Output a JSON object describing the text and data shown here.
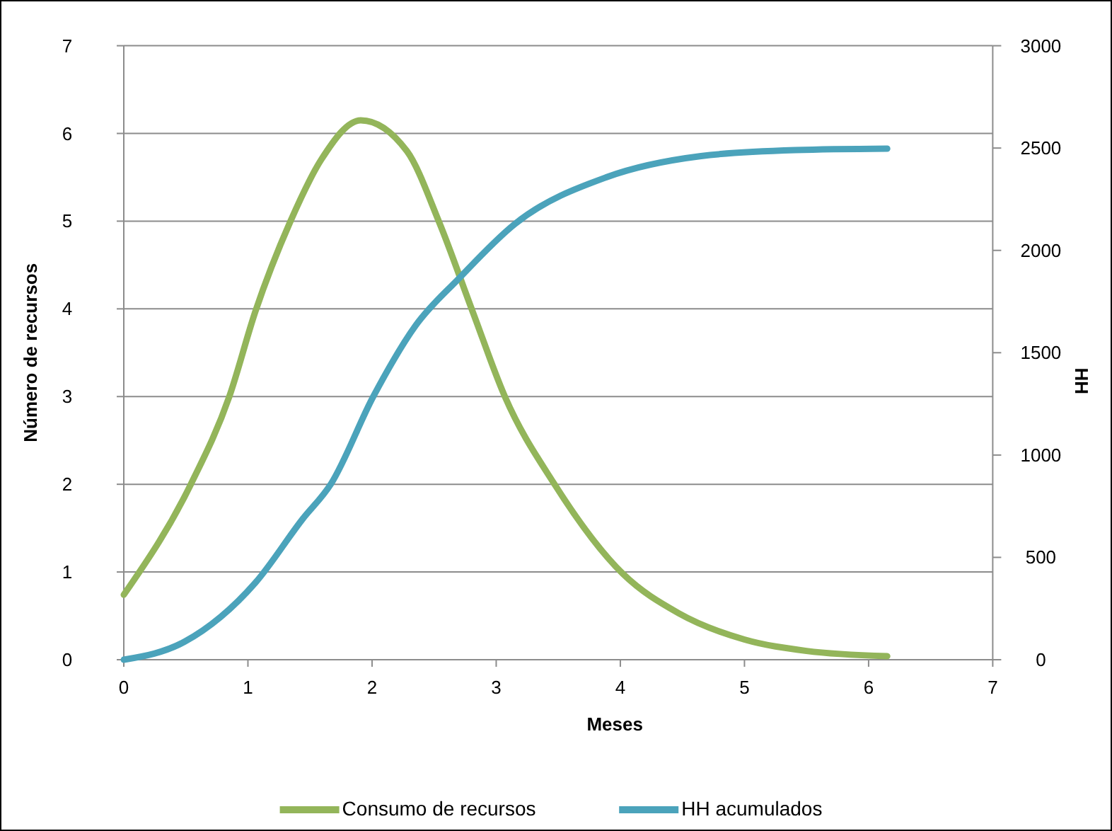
{
  "chart_data": {
    "type": "line",
    "xlabel": "Meses",
    "ylabel": "Número de recursos",
    "y2label": "HH",
    "xlim": [
      0,
      7
    ],
    "xticks": [
      0,
      1,
      2,
      3,
      4,
      5,
      6,
      7
    ],
    "ylim": [
      0,
      7
    ],
    "yticks": [
      0,
      1,
      2,
      3,
      4,
      5,
      6,
      7
    ],
    "y2lim": [
      0,
      3000
    ],
    "y2ticks": [
      0,
      500,
      1000,
      1500,
      2000,
      2500,
      3000
    ],
    "grid": "y",
    "legend": "bottom",
    "marker": "none",
    "line_style": "solid",
    "series": [
      {
        "name": "Consumo de recursos",
        "color": "#93b55a",
        "x": [
          0,
          0.54,
          0.85,
          1.06,
          1.34,
          1.59,
          1.91,
          2.28,
          2.54,
          2.81,
          3.07,
          3.47,
          4.02,
          4.47,
          5.0,
          5.5,
          6.15
        ],
        "values": [
          0.74,
          2.0,
          3.0,
          3.97,
          4.99,
          5.7,
          6.15,
          5.8,
          4.99,
          3.97,
          3.0,
          2.0,
          0.98,
          0.53,
          0.23,
          0.1,
          0.04
        ]
      },
      {
        "name": "HH acumulados",
        "color": "#4ba3bb",
        "axis": "y2",
        "x": [
          0,
          0.49,
          1.06,
          1.44,
          1.67,
          2.01,
          2.35,
          2.7,
          3.15,
          3.89,
          4.65,
          5.41,
          6.15
        ],
        "values": [
          0,
          88,
          376,
          687,
          860,
          1286,
          1632,
          1863,
          2129,
          2358,
          2461,
          2490,
          2497
        ]
      }
    ]
  }
}
